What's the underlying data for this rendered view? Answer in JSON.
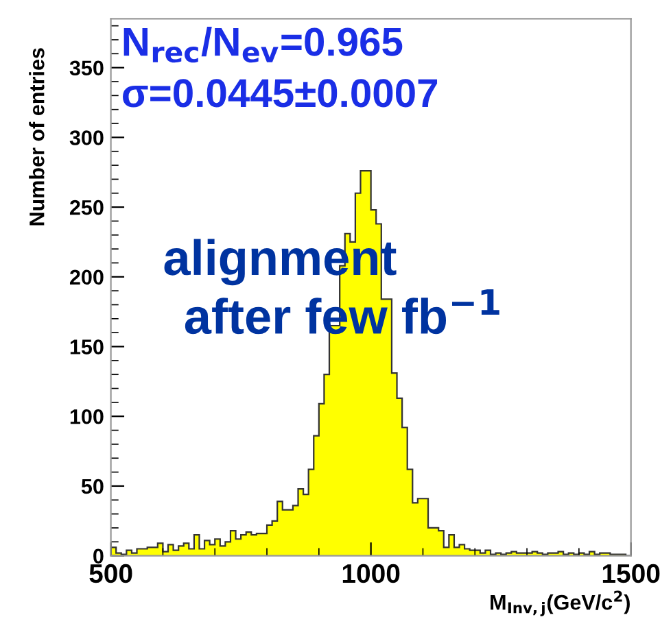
{
  "chart_data": {
    "type": "histogram",
    "xlabel": "M$_{Inv,j}$(GeV/c$^{2}$)",
    "ylabel": "Number of entries",
    "annotations": [
      "N$_{rec}$/N$_{ev}$=0.965",
      "σ=0.0445±0.0007",
      "alignment",
      "after few fb$^{−1}$"
    ],
    "bins": [
      500,
      510,
      520,
      530,
      540,
      550,
      560,
      570,
      580,
      590,
      600,
      610,
      620,
      630,
      640,
      650,
      660,
      670,
      680,
      690,
      700,
      710,
      720,
      730,
      740,
      750,
      760,
      770,
      780,
      790,
      800,
      810,
      820,
      830,
      840,
      850,
      860,
      870,
      880,
      890,
      900,
      910,
      920,
      930,
      940,
      950,
      960,
      970,
      980,
      990,
      1000,
      1010,
      1020,
      1030,
      1040,
      1050,
      1060,
      1070,
      1080,
      1090,
      1100,
      1110,
      1120,
      1130,
      1140,
      1150,
      1160,
      1170,
      1180,
      1190,
      1200,
      1210,
      1220,
      1230,
      1240,
      1250,
      1260,
      1270,
      1280,
      1290,
      1300,
      1310,
      1320,
      1330,
      1340,
      1350,
      1360,
      1370,
      1380,
      1390,
      1400,
      1410,
      1420,
      1430,
      1440,
      1450,
      1460,
      1470,
      1480,
      1490,
      1500
    ],
    "values": [
      6,
      2,
      1,
      4,
      2,
      5,
      5,
      6,
      6,
      9,
      3,
      8,
      4,
      7,
      9,
      5,
      15,
      5,
      11,
      8,
      12,
      7,
      10,
      18,
      12,
      15,
      17,
      15,
      16,
      16,
      22,
      25,
      39,
      33,
      33,
      36,
      48,
      44,
      62,
      86,
      109,
      130,
      165,
      165,
      208,
      231,
      225,
      260,
      276,
      276,
      248,
      238,
      184,
      184,
      131,
      113,
      92,
      62,
      38,
      41,
      41,
      20,
      20,
      18,
      6,
      15,
      6,
      8,
      5,
      4,
      4,
      2,
      4,
      1,
      2,
      1,
      2,
      3,
      2,
      2,
      2,
      3,
      2,
      1,
      2,
      2,
      3,
      1,
      2,
      1,
      2,
      1,
      3,
      1,
      2,
      2,
      1,
      1,
      1,
      0
    ],
    "color": "#ffff00",
    "xlim": [
      500,
      1500
    ],
    "ylim": [
      0,
      385
    ],
    "xticks": [
      500,
      1000,
      1500
    ],
    "yticks": [
      0,
      50,
      100,
      150,
      200,
      250,
      300,
      350
    ],
    "grid": false,
    "legend": false
  }
}
